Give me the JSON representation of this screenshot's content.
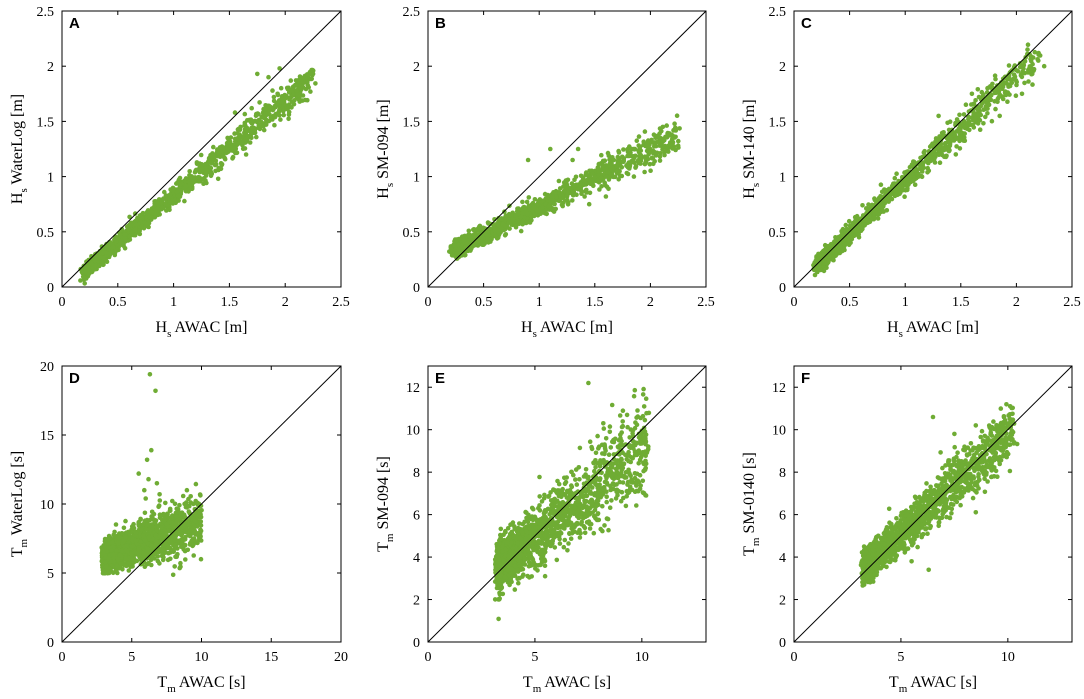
{
  "colors": {
    "points": "#6fac34",
    "axis": "#000000",
    "background": "#ffffff"
  },
  "chart_data": [
    {
      "panel": "A",
      "type": "scatter",
      "xlabel": {
        "main": "H",
        "sub": "s",
        "rest": " AWAC [m]"
      },
      "ylabel": {
        "main": "H",
        "sub": "s",
        "rest": " WaterLog [m]"
      },
      "xlim": [
        0,
        2.5
      ],
      "ylim": [
        0,
        2.5
      ],
      "xticks": [
        "0",
        "0.5",
        "1",
        "1.5",
        "2",
        "2.5"
      ],
      "yticks": [
        "0",
        "0.5",
        "1",
        "1.5",
        "2",
        "2.5"
      ],
      "reference_line": "1:1",
      "trend": {
        "slope": 0.86,
        "offset": -0.03,
        "spread": 0.05,
        "xmin": 0.22,
        "xmax": 2.25,
        "n": 1400
      },
      "points": [
        [
          1.75,
          1.93
        ],
        [
          1.85,
          1.9
        ],
        [
          1.95,
          1.98
        ],
        [
          2.05,
          1.87
        ],
        [
          2.1,
          1.78
        ],
        [
          2.12,
          1.7
        ],
        [
          2.25,
          1.93
        ],
        [
          1.7,
          1.62
        ],
        [
          1.55,
          1.58
        ],
        [
          1.6,
          1.45
        ],
        [
          1.65,
          1.2
        ],
        [
          1.4,
          0.98
        ],
        [
          1.5,
          1.3
        ]
      ]
    },
    {
      "panel": "B",
      "type": "scatter",
      "xlabel": {
        "main": "H",
        "sub": "s",
        "rest": " AWAC [m]"
      },
      "ylabel": {
        "main": "H",
        "sub": "s",
        "rest": " SM-094 [m]"
      },
      "xlim": [
        0,
        2.5
      ],
      "ylim": [
        0,
        2.5
      ],
      "xticks": [
        "0",
        "0.5",
        "1",
        "1.5",
        "2",
        "2.5"
      ],
      "yticks": [
        "0",
        "0.5",
        "1",
        "1.5",
        "2",
        "2.5"
      ],
      "reference_line": "1:1",
      "trend": {
        "slope": 0.52,
        "offset": 0.21,
        "spread": 0.055,
        "xmin": 0.25,
        "xmax": 2.25,
        "n": 1400
      },
      "points": [
        [
          2.2,
          1.35
        ],
        [
          2.25,
          1.28
        ],
        [
          2.1,
          1.3
        ],
        [
          1.95,
          1.18
        ],
        [
          1.8,
          1.22
        ],
        [
          1.7,
          1.05
        ],
        [
          1.35,
          1.25
        ],
        [
          1.3,
          1.15
        ],
        [
          1.1,
          1.25
        ],
        [
          0.9,
          1.15
        ],
        [
          1.45,
          0.75
        ],
        [
          1.6,
          0.82
        ]
      ]
    },
    {
      "panel": "C",
      "type": "scatter",
      "xlabel": {
        "main": "H",
        "sub": "s",
        "rest": " AWAC [m]"
      },
      "ylabel": {
        "main": "H",
        "sub": "s",
        "rest": " SM-140 [m]"
      },
      "xlim": [
        0,
        2.5
      ],
      "ylim": [
        0,
        2.5
      ],
      "xticks": [
        "0",
        "0.5",
        "1",
        "1.5",
        "2",
        "2.5"
      ],
      "yticks": [
        "0",
        "0.5",
        "1",
        "1.5",
        "2",
        "2.5"
      ],
      "reference_line": "1:1",
      "trend": {
        "slope": 0.96,
        "offset": 0.0,
        "spread": 0.06,
        "xmin": 0.22,
        "xmax": 2.2,
        "n": 1400
      },
      "points": [
        [
          2.1,
          2.15
        ],
        [
          2.2,
          2.12
        ],
        [
          2.25,
          2.0
        ],
        [
          2.05,
          1.75
        ],
        [
          1.95,
          1.95
        ],
        [
          1.6,
          1.75
        ],
        [
          1.3,
          1.55
        ],
        [
          1.85,
          1.55
        ]
      ]
    },
    {
      "panel": "D",
      "type": "scatter",
      "xlabel": {
        "main": "T",
        "sub": "m",
        "rest": " AWAC [s]"
      },
      "ylabel": {
        "main": "T",
        "sub": "m",
        "rest": " WaterLog [s]"
      },
      "xlim": [
        0,
        20
      ],
      "ylim": [
        0,
        20
      ],
      "xticks": [
        "0",
        "5",
        "10",
        "15",
        "20"
      ],
      "yticks": [
        "0",
        "5",
        "10",
        "15",
        "20"
      ],
      "reference_line": "1:1",
      "trend": {
        "slope": 0.38,
        "offset": 5.0,
        "spread": 0.8,
        "xmin": 3.0,
        "xmax": 10.0,
        "n": 1800
      },
      "points": [
        [
          6.3,
          19.4
        ],
        [
          6.7,
          18.2
        ],
        [
          6.4,
          13.9
        ],
        [
          6.1,
          13.2
        ],
        [
          5.5,
          12.2
        ],
        [
          6.2,
          11.8
        ],
        [
          6.8,
          11.5
        ],
        [
          5.9,
          11.0
        ],
        [
          7.0,
          10.7
        ],
        [
          6.0,
          10.4
        ]
      ]
    },
    {
      "panel": "E",
      "type": "scatter",
      "xlabel": {
        "main": "T",
        "sub": "m",
        "rest": " AWAC [s]"
      },
      "ylabel": {
        "main": "T",
        "sub": "m",
        "rest": " SM-094 [s]"
      },
      "xlim": [
        0,
        13
      ],
      "ylim": [
        0,
        13
      ],
      "xticks": [
        "0",
        "5",
        "10"
      ],
      "yticks": [
        "0",
        "2",
        "4",
        "6",
        "8",
        "10",
        "12"
      ],
      "reference_line": "1:1",
      "trend": {
        "slope": 0.82,
        "offset": 0.85,
        "spread": 0.85,
        "xmin": 3.3,
        "xmax": 10.3,
        "n": 1800
      },
      "points": [
        [
          7.5,
          12.2
        ],
        [
          8.5,
          9.9
        ],
        [
          9.0,
          9.6
        ],
        [
          9.5,
          8.7
        ],
        [
          10.2,
          6.9
        ],
        [
          8.0,
          9.2
        ]
      ]
    },
    {
      "panel": "F",
      "type": "scatter",
      "xlabel": {
        "main": "T",
        "sub": "m",
        "rest": " AWAC [s]"
      },
      "ylabel": {
        "main": "T",
        "sub": "m",
        "rest": " SM-0140 [s]"
      },
      "xlim": [
        0,
        13
      ],
      "ylim": [
        0,
        13
      ],
      "xticks": [
        "0",
        "5",
        "10"
      ],
      "yticks": [
        "0",
        "2",
        "4",
        "6",
        "8",
        "10",
        "12"
      ],
      "reference_line": "1:1",
      "trend": {
        "slope": 0.93,
        "offset": 0.45,
        "spread": 0.55,
        "xmin": 3.3,
        "xmax": 10.3,
        "n": 1800
      },
      "points": [
        [
          6.5,
          10.6
        ],
        [
          8.5,
          10.2
        ],
        [
          9.3,
          9.5
        ],
        [
          10.3,
          9.4
        ],
        [
          7.5,
          9.8
        ],
        [
          6.3,
          3.4
        ],
        [
          5.5,
          3.8
        ]
      ]
    }
  ]
}
